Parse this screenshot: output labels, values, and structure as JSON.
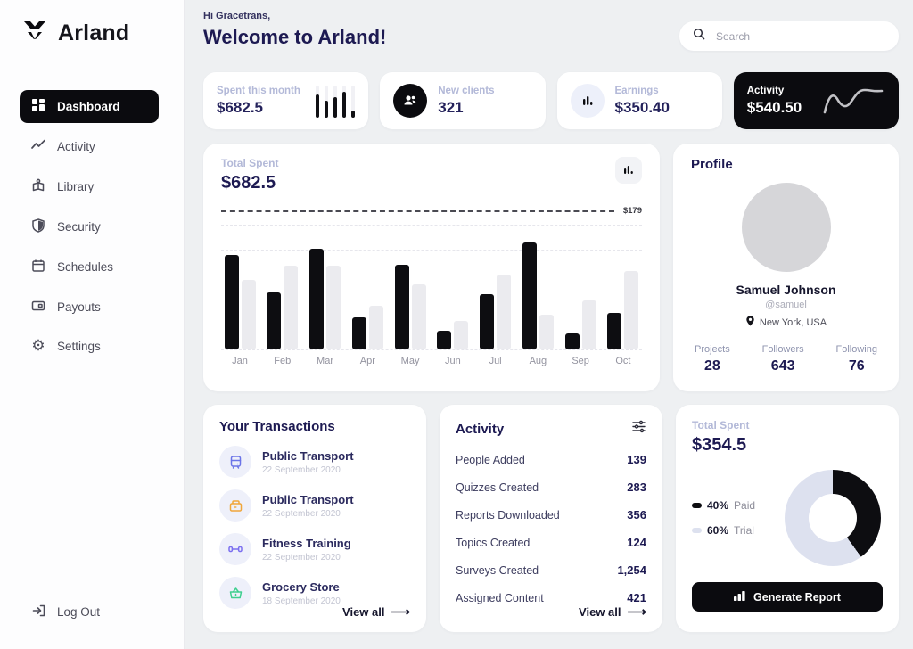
{
  "app": {
    "name": "Arland"
  },
  "sidebar": {
    "logo_text": "Arland",
    "items": [
      {
        "label": "Dashboard",
        "icon": "grid-icon",
        "active": true
      },
      {
        "label": "Activity",
        "icon": "line-chart-icon",
        "active": false
      },
      {
        "label": "Library",
        "icon": "library-icon",
        "active": false
      },
      {
        "label": "Security",
        "icon": "shield-icon",
        "active": false
      },
      {
        "label": "Schedules",
        "icon": "calendar-icon",
        "active": false
      },
      {
        "label": "Payouts",
        "icon": "card-icon",
        "active": false
      },
      {
        "label": "Settings",
        "icon": "gear-icon",
        "active": false
      }
    ],
    "logout_label": "Log Out"
  },
  "header": {
    "greeting": "Hi Gracetrans,",
    "title": "Welcome to Arland!",
    "search_placeholder": "Search"
  },
  "stats": [
    {
      "label": "Spent this month",
      "value": "$682.5",
      "icon": "mini-bars"
    },
    {
      "label": "New clients",
      "value": "321",
      "icon": "people-icon"
    },
    {
      "label": "Earnings",
      "value": "$350.40",
      "icon": "bar-chart-icon"
    },
    {
      "label": "Activity",
      "value": "$540.50",
      "icon": "wave-line",
      "theme": "dark"
    }
  ],
  "chart_data": [
    {
      "type": "bar",
      "title": "Total Spent",
      "total_label": "$682.5",
      "threshold_label": "$179",
      "categories": [
        "Jan",
        "Feb",
        "Mar",
        "Apr",
        "May",
        "Jun",
        "Jul",
        "Aug",
        "Sep",
        "Oct"
      ],
      "series": [
        {
          "name": "primary",
          "color": "#0d0d11",
          "values": [
            76,
            46,
            81,
            26,
            68,
            15,
            44,
            86,
            13,
            29
          ]
        },
        {
          "name": "secondary",
          "color": "#ebebef",
          "values": [
            56,
            67,
            67,
            35,
            52,
            23,
            60,
            28,
            39,
            63
          ]
        }
      ],
      "ylim": [
        0,
        100
      ],
      "grid": true,
      "note": "values are percent of plot height; dashed reference line labeled $179 above plot"
    },
    {
      "type": "pie",
      "title": "Total Spent",
      "total_label": "$354.5",
      "slices": [
        {
          "label": "Paid",
          "value": 40,
          "pct_label": "40%",
          "color": "#0d0d11"
        },
        {
          "label": "Trial",
          "value": 60,
          "pct_label": "60%",
          "color": "#dde1ef"
        }
      ],
      "legend_position": "left"
    }
  ],
  "profile": {
    "title": "Profile",
    "name": "Samuel Johnson",
    "handle": "@samuel",
    "location": "New York, USA",
    "stats": [
      {
        "label": "Projects",
        "value": "28"
      },
      {
        "label": "Followers",
        "value": "643"
      },
      {
        "label": "Following",
        "value": "76"
      }
    ]
  },
  "transactions": {
    "title": "Your Transactions",
    "items": [
      {
        "name": "Public Transport",
        "date": "22 September 2020",
        "icon": "bus-icon",
        "icon_color": "#6b74e8"
      },
      {
        "name": "Public Transport",
        "date": "22 September 2020",
        "icon": "wallet-icon",
        "icon_color": "#f0a63a"
      },
      {
        "name": "Fitness Training",
        "date": "22 September 2020",
        "icon": "dumbbell-icon",
        "icon_color": "#7b6ff0"
      },
      {
        "name": "Grocery Store",
        "date": "18 September 2020",
        "icon": "basket-icon",
        "icon_color": "#3ecf8e"
      }
    ],
    "view_all_label": "View all"
  },
  "activity_summary": {
    "title": "Activity",
    "rows": [
      {
        "label": "People Added",
        "value": "139"
      },
      {
        "label": "Quizzes Created",
        "value": "283"
      },
      {
        "label": "Reports Downloaded",
        "value": "356"
      },
      {
        "label": "Topics Created",
        "value": "124"
      },
      {
        "label": "Surveys Created",
        "value": "1,254"
      },
      {
        "label": "Assigned Content",
        "value": "421"
      }
    ],
    "view_all_label": "View all"
  },
  "spent_summary": {
    "label": "Total Spent",
    "value": "$354.5",
    "report_button_label": "Generate Report"
  },
  "colors": {
    "accent_dark": "#0b0b0f",
    "navy_text": "#1d1a52",
    "muted_label": "#b3b9d8",
    "background": "#eef0f2"
  }
}
